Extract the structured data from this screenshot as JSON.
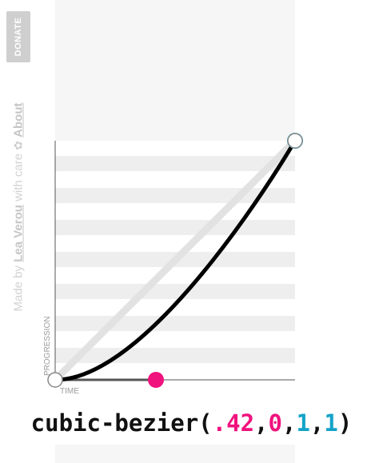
{
  "credit": {
    "donate_label": "DONATE",
    "made_by": "Made by",
    "author": "Lea Verou",
    "with_care": "with care",
    "heart_icon": "✿",
    "about": "About"
  },
  "graph": {
    "y_axis_label": "PROGRESSION",
    "x_axis_label": "TIME",
    "control_point_1": {
      "x": 0.42,
      "y": 0
    },
    "control_point_2": {
      "x": 1,
      "y": 1
    },
    "colors": {
      "curve": "#000000",
      "handle_p1": "#f0127d",
      "handle_p2": "#14a3c8",
      "stripe": "#eeeeee",
      "guide": "#dddddd"
    }
  },
  "output": {
    "prefix": "cubic-bezier(",
    "p1x": ".42",
    "p1y": "0",
    "p2x": "1",
    "p2y": "1",
    "comma": ",",
    "suffix": ")"
  }
}
